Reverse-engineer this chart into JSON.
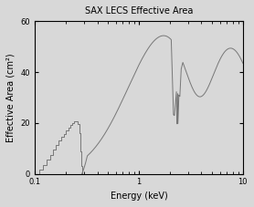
{
  "title": "SAX LECS Effective Area",
  "xlabel": "Energy (keV)",
  "ylabel": "Effective Area (cm²)",
  "xlim": [
    0.1,
    10
  ],
  "ylim": [
    0,
    60
  ],
  "yticks": [
    0,
    20,
    40,
    60
  ],
  "line_color": "#777777",
  "background_color": "#d8d8d8",
  "figsize": [
    2.78,
    2.27
  ],
  "dpi": 100
}
